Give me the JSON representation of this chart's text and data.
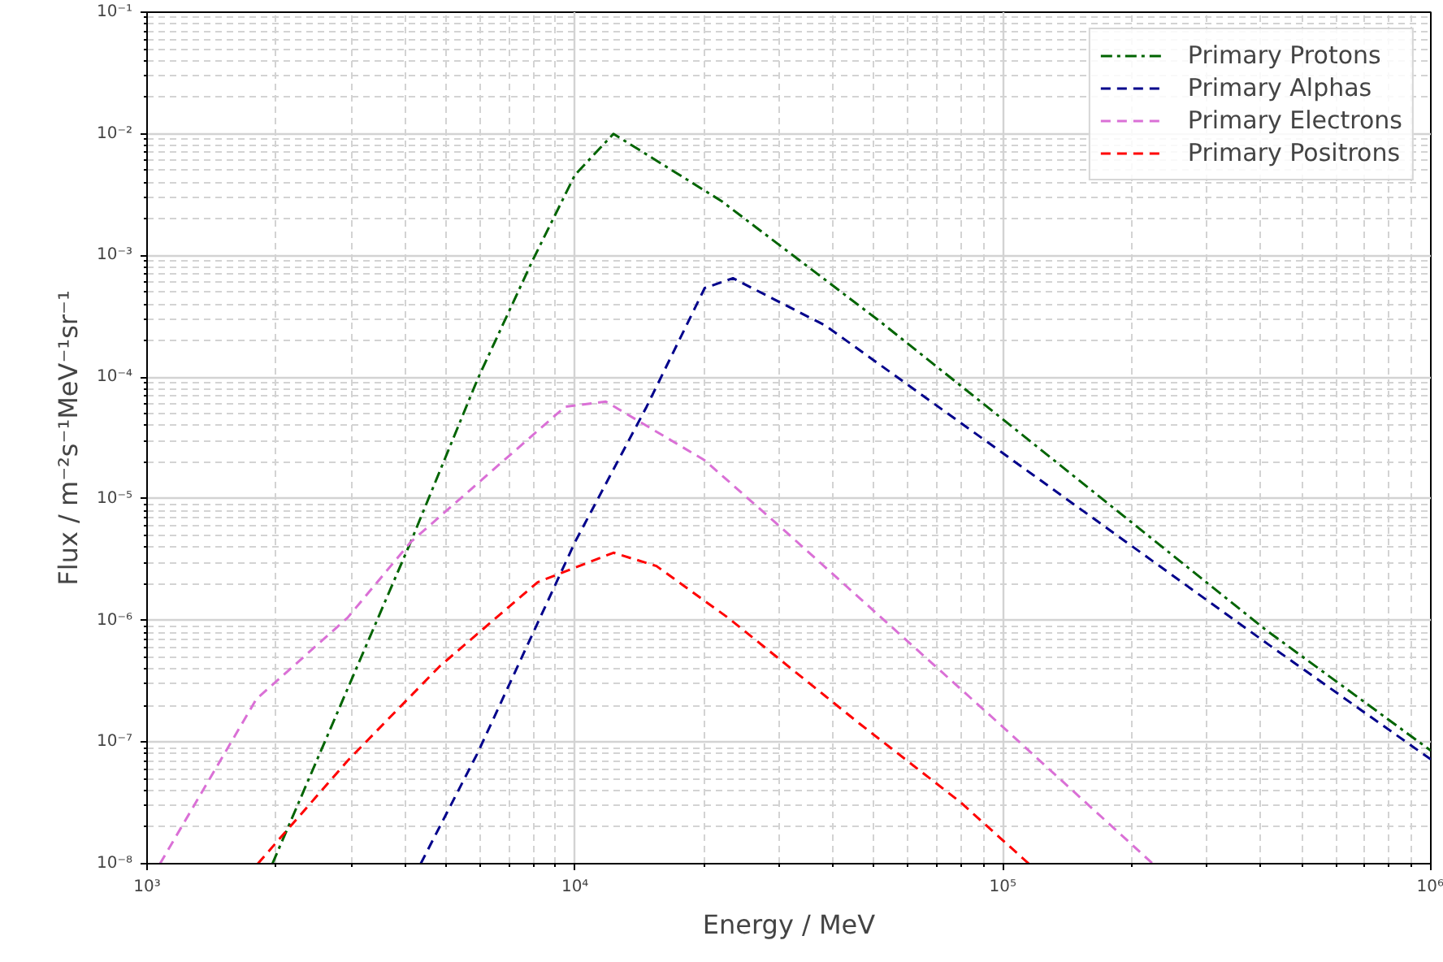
{
  "chart_data": {
    "type": "line",
    "xlabel": "Energy / MeV",
    "ylabel": "Flux / m⁻²s⁻¹MeV⁻¹sr⁻¹",
    "log": "xy",
    "grid": true,
    "legend": "top right",
    "xlim": [
      1000,
      1000000
    ],
    "ylim": [
      1e-08,
      0.1
    ],
    "xticks": [
      {
        "value": 1000,
        "label": "10³"
      },
      {
        "value": 10000,
        "label": "10⁴"
      },
      {
        "value": 100000,
        "label": "10⁵"
      },
      {
        "value": 1000000,
        "label": "10⁶"
      }
    ],
    "yticks": [
      {
        "value": 1e-08,
        "label": "10⁻⁸"
      },
      {
        "value": 1e-07,
        "label": "10⁻⁷"
      },
      {
        "value": 1e-06,
        "label": "10⁻⁶"
      },
      {
        "value": 1e-05,
        "label": "10⁻⁵"
      },
      {
        "value": 0.0001,
        "label": "10⁻⁴"
      },
      {
        "value": 0.001,
        "label": "10⁻³"
      },
      {
        "value": 0.01,
        "label": "10⁻²"
      },
      {
        "value": 0.1,
        "label": "10⁻¹"
      }
    ],
    "series": [
      {
        "name": "Primary Protons",
        "color": "#006400",
        "line_style": "dashdot",
        "x": [
          1963,
          4130,
          5920,
          7960,
          10000,
          12300,
          22000,
          51400,
          100000,
          409000,
          1000000
        ],
        "values": [
          1e-08,
          4.4e-06,
          9.6e-05,
          0.00091,
          0.0046,
          0.01,
          0.0028,
          0.00029,
          4.5e-05,
          8.5e-07,
          8.5e-08
        ]
      },
      {
        "name": "Primary Alphas",
        "color": "#00008b",
        "line_style": "dashed",
        "x": [
          4360,
          5920,
          10000,
          14700,
          20100,
          23400,
          38500,
          100000,
          421000,
          1000000
        ],
        "values": [
          1e-08,
          8.1e-08,
          4.4e-06,
          5.7e-05,
          0.00054,
          0.00065,
          0.000265,
          2.37e-05,
          6.2e-07,
          7.2e-08
        ]
      },
      {
        "name": "Primary Electrons",
        "color": "#da70d6",
        "line_style": "dashed",
        "x": [
          1072,
          1800,
          2940,
          4130,
          9480,
          11800,
          20100,
          31200,
          100000,
          224000
        ],
        "values": [
          1e-08,
          2.25e-07,
          1.05e-06,
          4.4e-06,
          5.7e-05,
          6.3e-05,
          2.07e-05,
          5.3e-06,
          1.33e-07,
          1e-08
        ]
      },
      {
        "name": "Primary Positrons",
        "color": "#ff0000",
        "line_style": "dashed",
        "x": [
          1815,
          2940,
          4830,
          8180,
          12300,
          15500,
          22800,
          46200,
          79600,
          115000
        ],
        "values": [
          1e-08,
          7e-08,
          4.2e-07,
          2.06e-06,
          3.6e-06,
          2.8e-06,
          1.05e-06,
          1.42e-07,
          3.2e-08,
          1e-08
        ]
      }
    ]
  }
}
